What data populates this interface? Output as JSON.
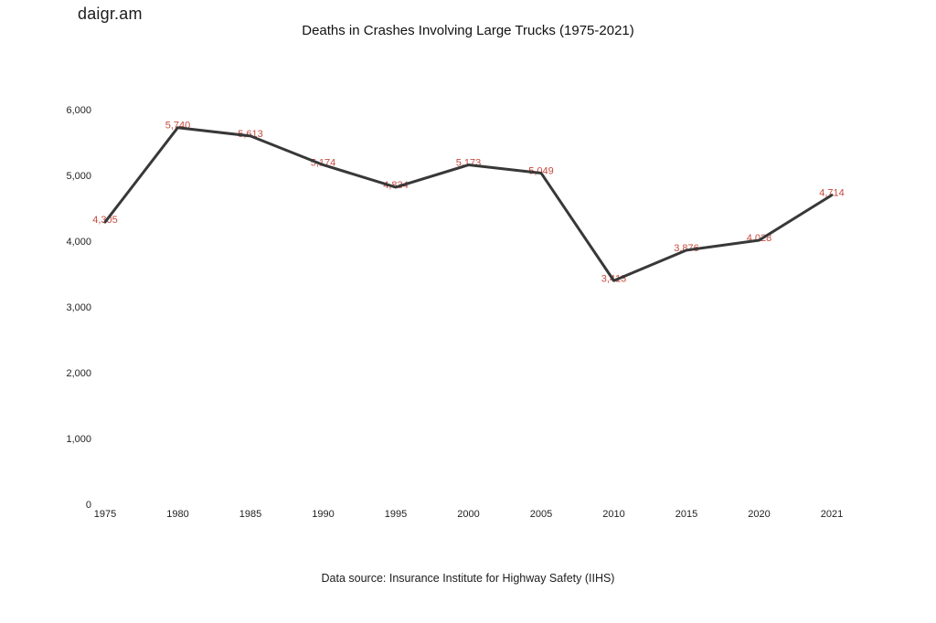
{
  "logo": "daigr.am",
  "title": "Deaths in Crashes Involving Large Trucks (1975-2021)",
  "footer": "Data source: Insurance Institute for Highway Safety (IIHS)",
  "colors": {
    "line": "#383838",
    "data_label": "#c64a3d",
    "axis_text": "#1f1f1f",
    "background": "#ffffff"
  },
  "chart_data": {
    "type": "line",
    "title": "Deaths in Crashes Involving Large Trucks (1975-2021)",
    "categories": [
      "1975",
      "1980",
      "1985",
      "1990",
      "1995",
      "2000",
      "2005",
      "2010",
      "2015",
      "2020",
      "2021"
    ],
    "values": [
      4305,
      5740,
      5613,
      5174,
      4834,
      5173,
      5049,
      3413,
      3876,
      4028,
      4714
    ],
    "data_labels": [
      "4,305",
      "5,740",
      "5,613",
      "5,174",
      "4,834",
      "5,173",
      "5,049",
      "3,413",
      "3,876",
      "4,028",
      "4,714"
    ],
    "yticks": [
      0,
      1000,
      2000,
      3000,
      4000,
      5000,
      6000
    ],
    "ytick_labels": [
      "0",
      "1,000",
      "2,000",
      "3,000",
      "4,000",
      "5,000",
      "6,000"
    ],
    "ylim": [
      0,
      6000
    ],
    "xlabel": "",
    "ylabel": "",
    "grid": false,
    "legend": false,
    "caption": "Data source: Insurance Institute for Highway Safety (IIHS)"
  }
}
